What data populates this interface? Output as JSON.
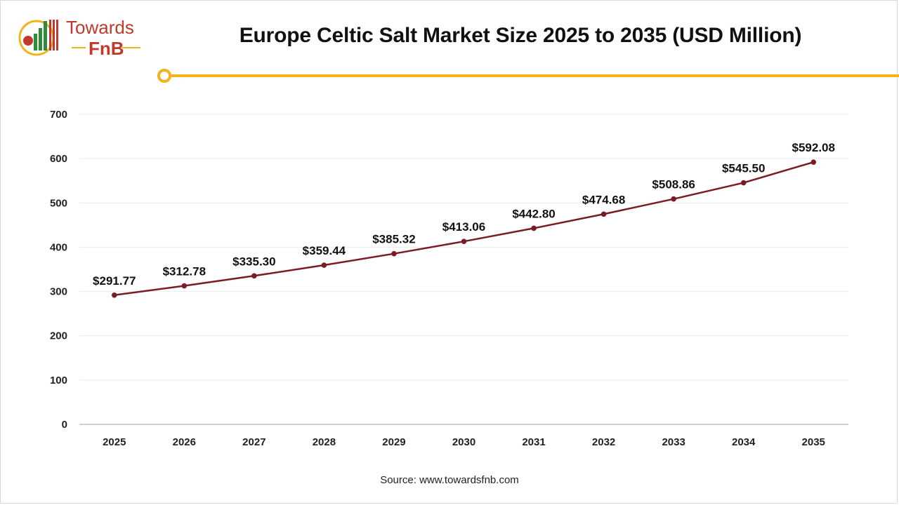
{
  "brand": {
    "name_line1": "Towards",
    "name_line2": "FnB"
  },
  "colors": {
    "accent": "#f2b31b",
    "line": "#7b1c24",
    "brand_red": "#c0392b",
    "brand_green": "#2e8b3a"
  },
  "source_text": "Source: www.towardsfnb.com",
  "chart_data": {
    "type": "line",
    "title": "Europe Celtic Salt Market Size 2025 to 2035 (USD Million)",
    "xlabel": "",
    "ylabel": "",
    "categories": [
      "2025",
      "2026",
      "2027",
      "2028",
      "2029",
      "2030",
      "2031",
      "2032",
      "2033",
      "2034",
      "2035"
    ],
    "series": [
      {
        "values": [
          291.77,
          312.78,
          335.3,
          359.44,
          385.32,
          413.06,
          442.8,
          474.68,
          508.86,
          545.5,
          592.08
        ],
        "labels": [
          "$291.77",
          "$312.78",
          "$335.30",
          "$359.44",
          "$385.32",
          "$413.06",
          "$442.80",
          "$474.68",
          "$508.86",
          "$545.50",
          "$592.08"
        ]
      }
    ],
    "ylim": [
      0,
      700
    ],
    "yticks": [
      0,
      100,
      200,
      300,
      400,
      500,
      600,
      700
    ],
    "grid": true,
    "legend": "none"
  }
}
